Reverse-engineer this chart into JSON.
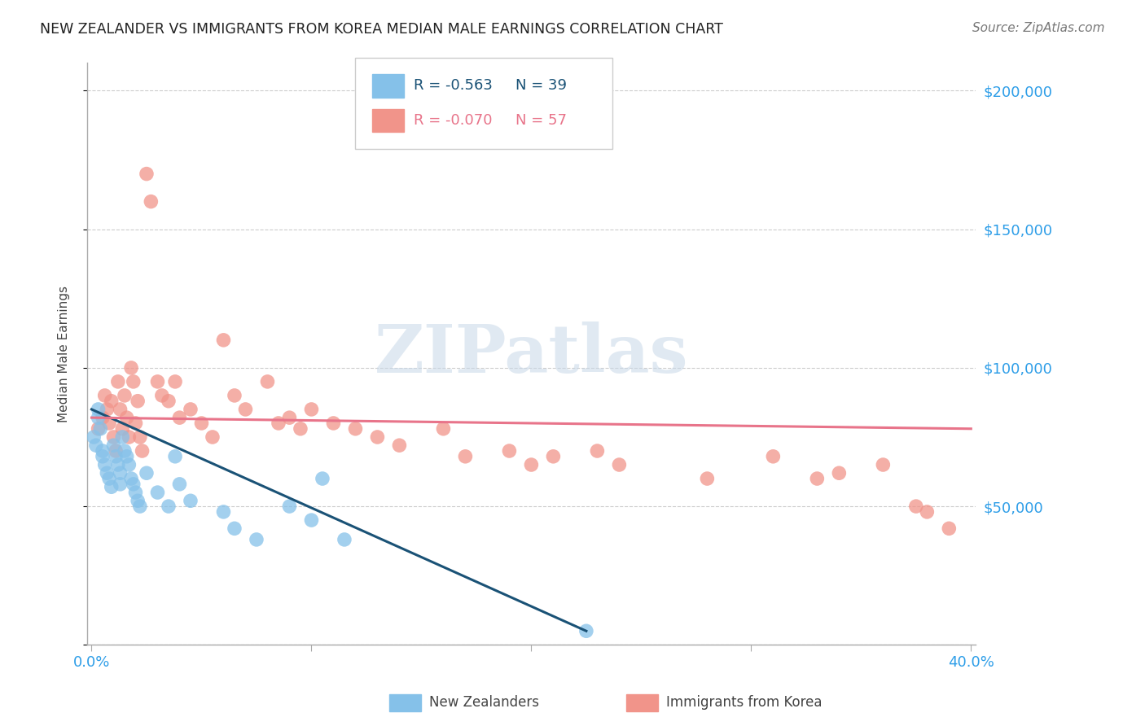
{
  "title": "NEW ZEALANDER VS IMMIGRANTS FROM KOREA MEDIAN MALE EARNINGS CORRELATION CHART",
  "source": "Source: ZipAtlas.com",
  "ylabel": "Median Male Earnings",
  "xlim": [
    -0.002,
    0.402
  ],
  "ylim": [
    0,
    210000
  ],
  "yticks": [
    0,
    50000,
    100000,
    150000,
    200000
  ],
  "ytick_labels": [
    "",
    "$50,000",
    "$100,000",
    "$150,000",
    "$200,000"
  ],
  "xticks": [
    0.0,
    0.1,
    0.2,
    0.3,
    0.4
  ],
  "xtick_labels": [
    "0.0%",
    "",
    "",
    "",
    "40.0%"
  ],
  "legend_r1": "R = -0.563",
  "legend_n1": "N = 39",
  "legend_r2": "R = -0.070",
  "legend_n2": "N = 57",
  "legend1_label": "New Zealanders",
  "legend2_label": "Immigrants from Korea",
  "color_nz": "#85C1E9",
  "color_korea": "#F1948A",
  "color_nz_line": "#1A5276",
  "color_korea_line": "#E8748A",
  "color_axis_labels": "#2E9EE8",
  "watermark_text": "ZIPatlas",
  "background_color": "#FFFFFF",
  "nz_x": [
    0.001,
    0.002,
    0.003,
    0.003,
    0.004,
    0.005,
    0.005,
    0.006,
    0.007,
    0.008,
    0.009,
    0.01,
    0.011,
    0.012,
    0.013,
    0.013,
    0.014,
    0.015,
    0.016,
    0.017,
    0.018,
    0.019,
    0.02,
    0.021,
    0.022,
    0.025,
    0.03,
    0.035,
    0.038,
    0.04,
    0.045,
    0.06,
    0.065,
    0.075,
    0.09,
    0.1,
    0.105,
    0.115,
    0.225
  ],
  "nz_y": [
    75000,
    72000,
    85000,
    82000,
    78000,
    70000,
    68000,
    65000,
    62000,
    60000,
    57000,
    72000,
    68000,
    65000,
    62000,
    58000,
    75000,
    70000,
    68000,
    65000,
    60000,
    58000,
    55000,
    52000,
    50000,
    62000,
    55000,
    50000,
    68000,
    58000,
    52000,
    48000,
    42000,
    38000,
    50000,
    45000,
    60000,
    38000,
    5000
  ],
  "korea_x": [
    0.003,
    0.005,
    0.006,
    0.007,
    0.008,
    0.009,
    0.01,
    0.011,
    0.012,
    0.013,
    0.014,
    0.015,
    0.016,
    0.017,
    0.018,
    0.019,
    0.02,
    0.021,
    0.022,
    0.023,
    0.025,
    0.027,
    0.03,
    0.032,
    0.035,
    0.038,
    0.04,
    0.045,
    0.05,
    0.055,
    0.06,
    0.065,
    0.07,
    0.08,
    0.085,
    0.09,
    0.095,
    0.1,
    0.11,
    0.12,
    0.13,
    0.14,
    0.16,
    0.17,
    0.19,
    0.2,
    0.21,
    0.23,
    0.24,
    0.28,
    0.31,
    0.33,
    0.34,
    0.36,
    0.375,
    0.38,
    0.39
  ],
  "korea_y": [
    78000,
    82000,
    90000,
    85000,
    80000,
    88000,
    75000,
    70000,
    95000,
    85000,
    78000,
    90000,
    82000,
    75000,
    100000,
    95000,
    80000,
    88000,
    75000,
    70000,
    170000,
    160000,
    95000,
    90000,
    88000,
    95000,
    82000,
    85000,
    80000,
    75000,
    110000,
    90000,
    85000,
    95000,
    80000,
    82000,
    78000,
    85000,
    80000,
    78000,
    75000,
    72000,
    78000,
    68000,
    70000,
    65000,
    68000,
    70000,
    65000,
    60000,
    68000,
    60000,
    62000,
    65000,
    50000,
    48000,
    42000
  ]
}
